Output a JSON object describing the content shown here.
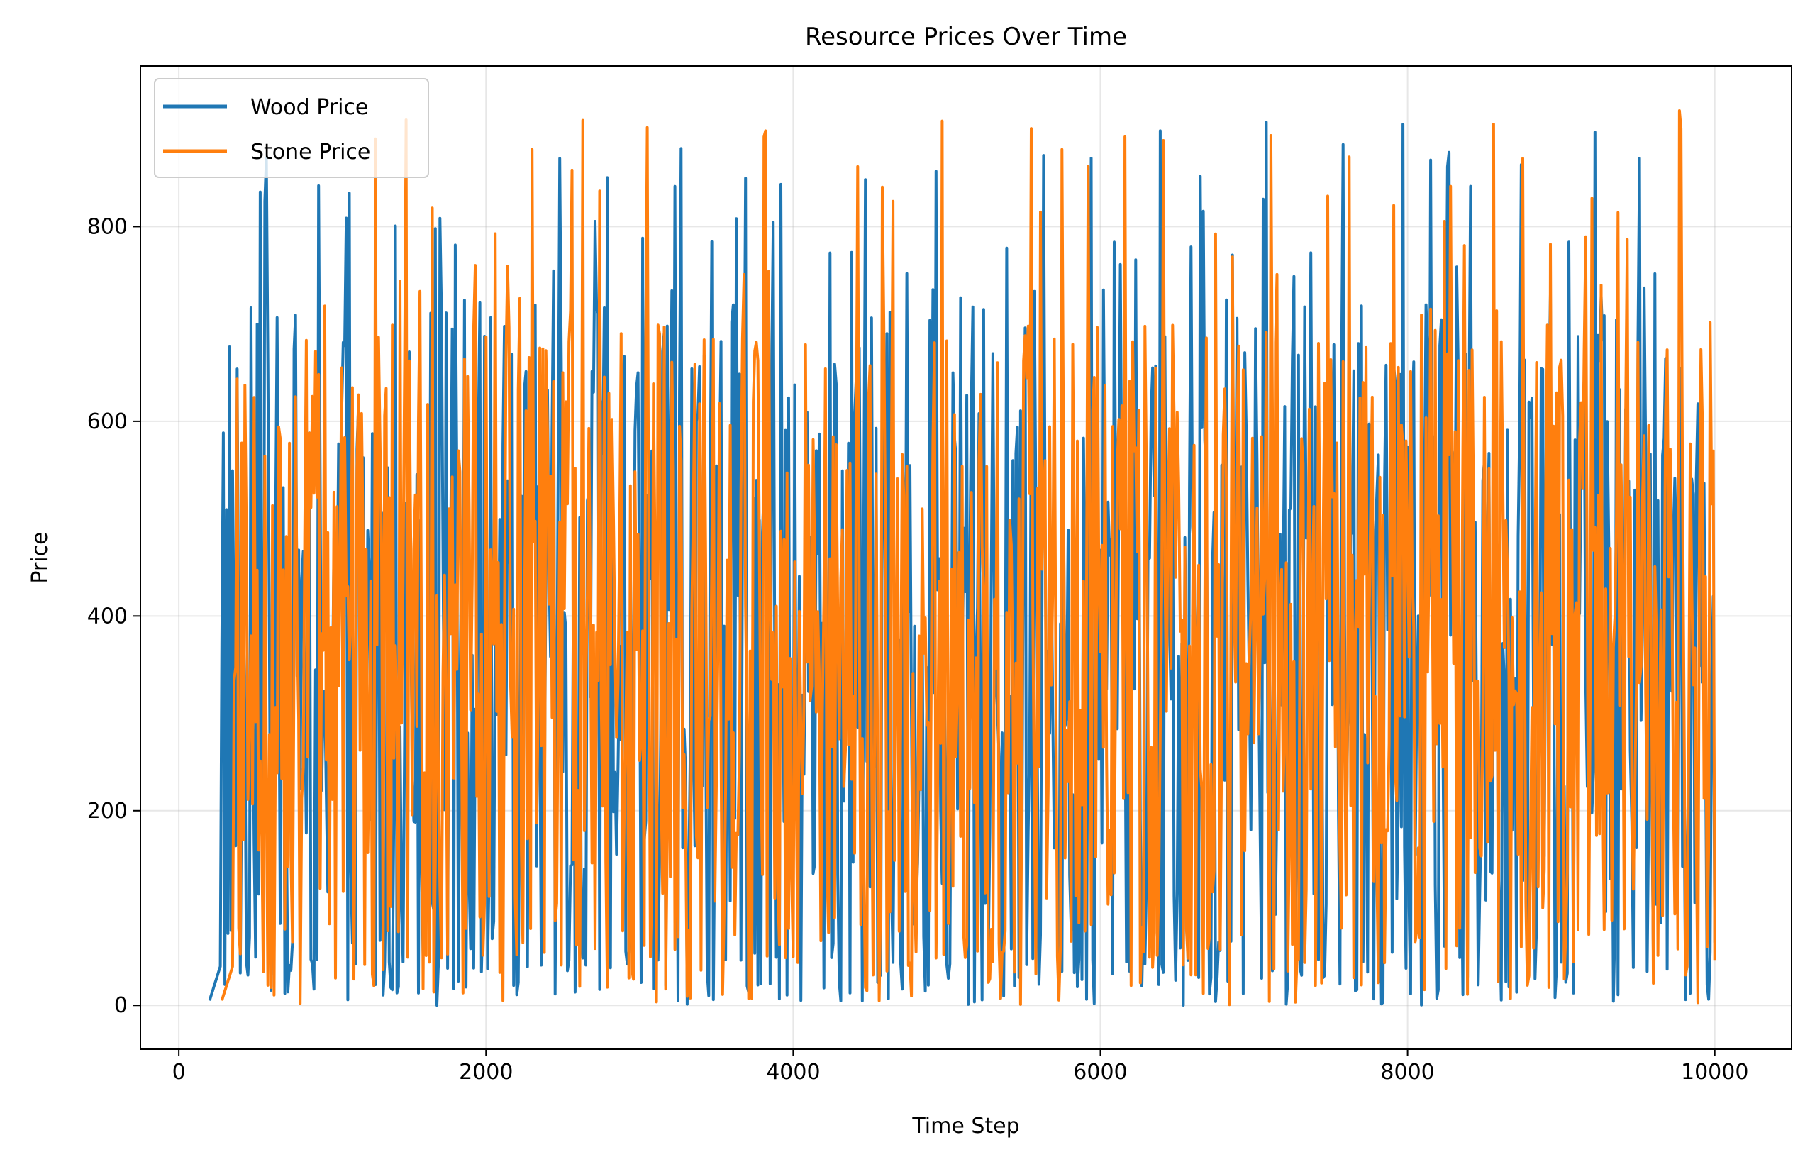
{
  "chart_data": {
    "type": "line",
    "title": "Resource Prices Over Time",
    "xlabel": "Time Step",
    "ylabel": "Price",
    "xlim": [
      -250,
      10500
    ],
    "ylim": [
      -45,
      965
    ],
    "xticks": [
      0,
      2000,
      4000,
      6000,
      8000,
      10000
    ],
    "yticks": [
      0,
      200,
      400,
      600,
      800
    ],
    "grid": true,
    "legend_position": "upper-left",
    "series": [
      {
        "name": "Wood Price",
        "color": "#1f77b4",
        "x_range": [
          200,
          10000
        ],
        "sample_step": 10,
        "min": 0,
        "max": 912,
        "typical_low": 10,
        "typical_high": 720
      },
      {
        "name": "Stone Price",
        "color": "#ff7f0e",
        "x_range": [
          280,
          10000
        ],
        "sample_step": 10,
        "min": 0,
        "max": 920,
        "typical_low": 40,
        "typical_high": 700
      }
    ]
  }
}
